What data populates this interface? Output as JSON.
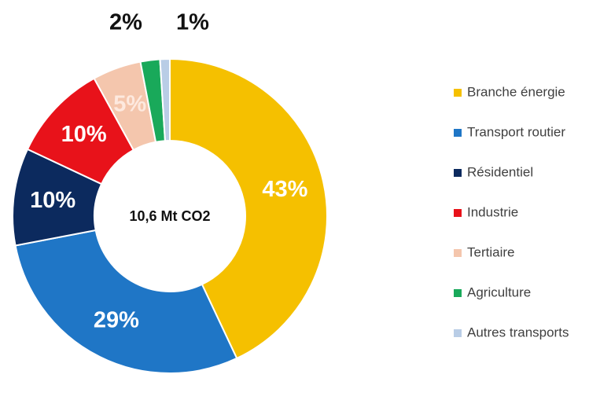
{
  "chart_data": {
    "type": "pie",
    "center_label": "10,6 Mt CO2",
    "categories": [
      "Branche énergie",
      "Transport routier",
      "Résidentiel",
      "Industrie",
      "Tertiaire",
      "Agriculture",
      "Autres transports"
    ],
    "values": [
      43,
      29,
      10,
      10,
      5,
      2,
      1
    ],
    "value_labels": [
      "43%",
      "29%",
      "10%",
      "10%",
      "5%",
      "2%",
      "1%"
    ],
    "colors": [
      "#f5c000",
      "#1f76c6",
      "#0c2a5e",
      "#e8121a",
      "#f4c6ad",
      "#19a95a",
      "#b9cde6"
    ],
    "legend": "right"
  }
}
